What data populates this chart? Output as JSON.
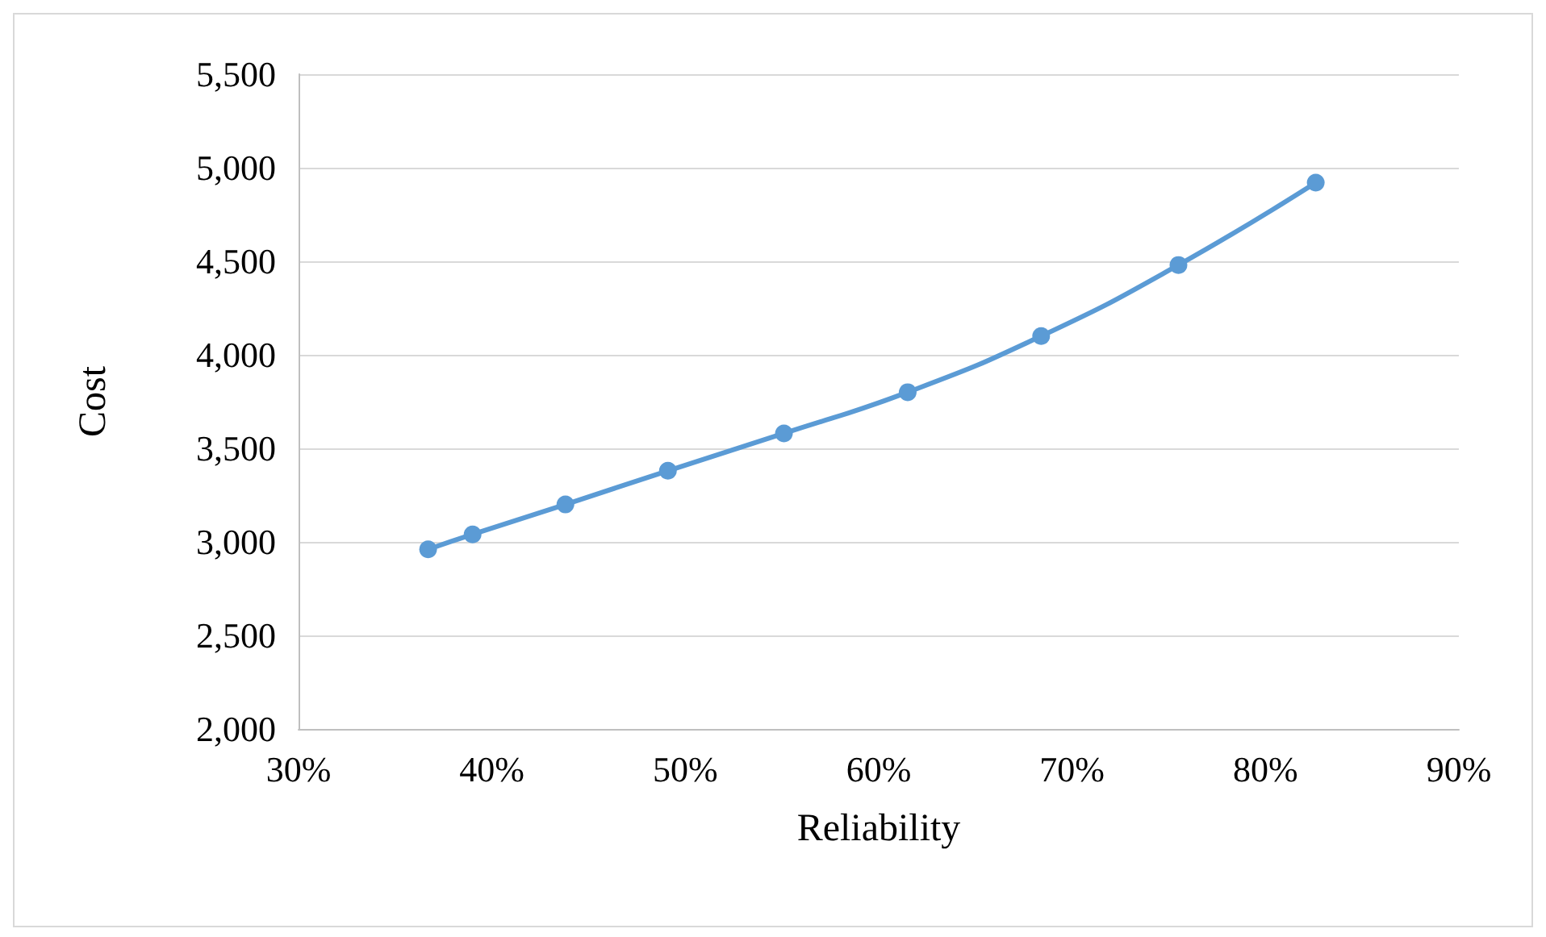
{
  "chart_data": {
    "type": "line",
    "xlabel": "Reliability",
    "ylabel": "Cost",
    "x": [
      36.7,
      39.0,
      43.8,
      49.1,
      55.1,
      61.5,
      68.4,
      75.5,
      82.6
    ],
    "series": [
      {
        "color": "#5b9bd5",
        "values": [
          2960,
          3040,
          3200,
          3380,
          3580,
          3800,
          4100,
          4480,
          4920
        ]
      }
    ],
    "xlim": [
      30,
      90
    ],
    "xticks": [
      {
        "value": 30,
        "label": "30%"
      },
      {
        "value": 40,
        "label": "40%"
      },
      {
        "value": 50,
        "label": "50%"
      },
      {
        "value": 60,
        "label": "60%"
      },
      {
        "value": 70,
        "label": "70%"
      },
      {
        "value": 80,
        "label": "80%"
      },
      {
        "value": 90,
        "label": "90%"
      }
    ],
    "ylim": [
      2000,
      5500
    ],
    "yticks": [
      {
        "value": 2000,
        "label": "2,000"
      },
      {
        "value": 2500,
        "label": "2,500"
      },
      {
        "value": 3000,
        "label": "3,000"
      },
      {
        "value": 3500,
        "label": "3,500"
      },
      {
        "value": 4000,
        "label": "4,000"
      },
      {
        "value": 4500,
        "label": "4,500"
      },
      {
        "value": 5000,
        "label": "5,000"
      },
      {
        "value": 5500,
        "label": "5,500"
      }
    ],
    "grid": "y",
    "marker": "circle",
    "line_style": "solid"
  }
}
